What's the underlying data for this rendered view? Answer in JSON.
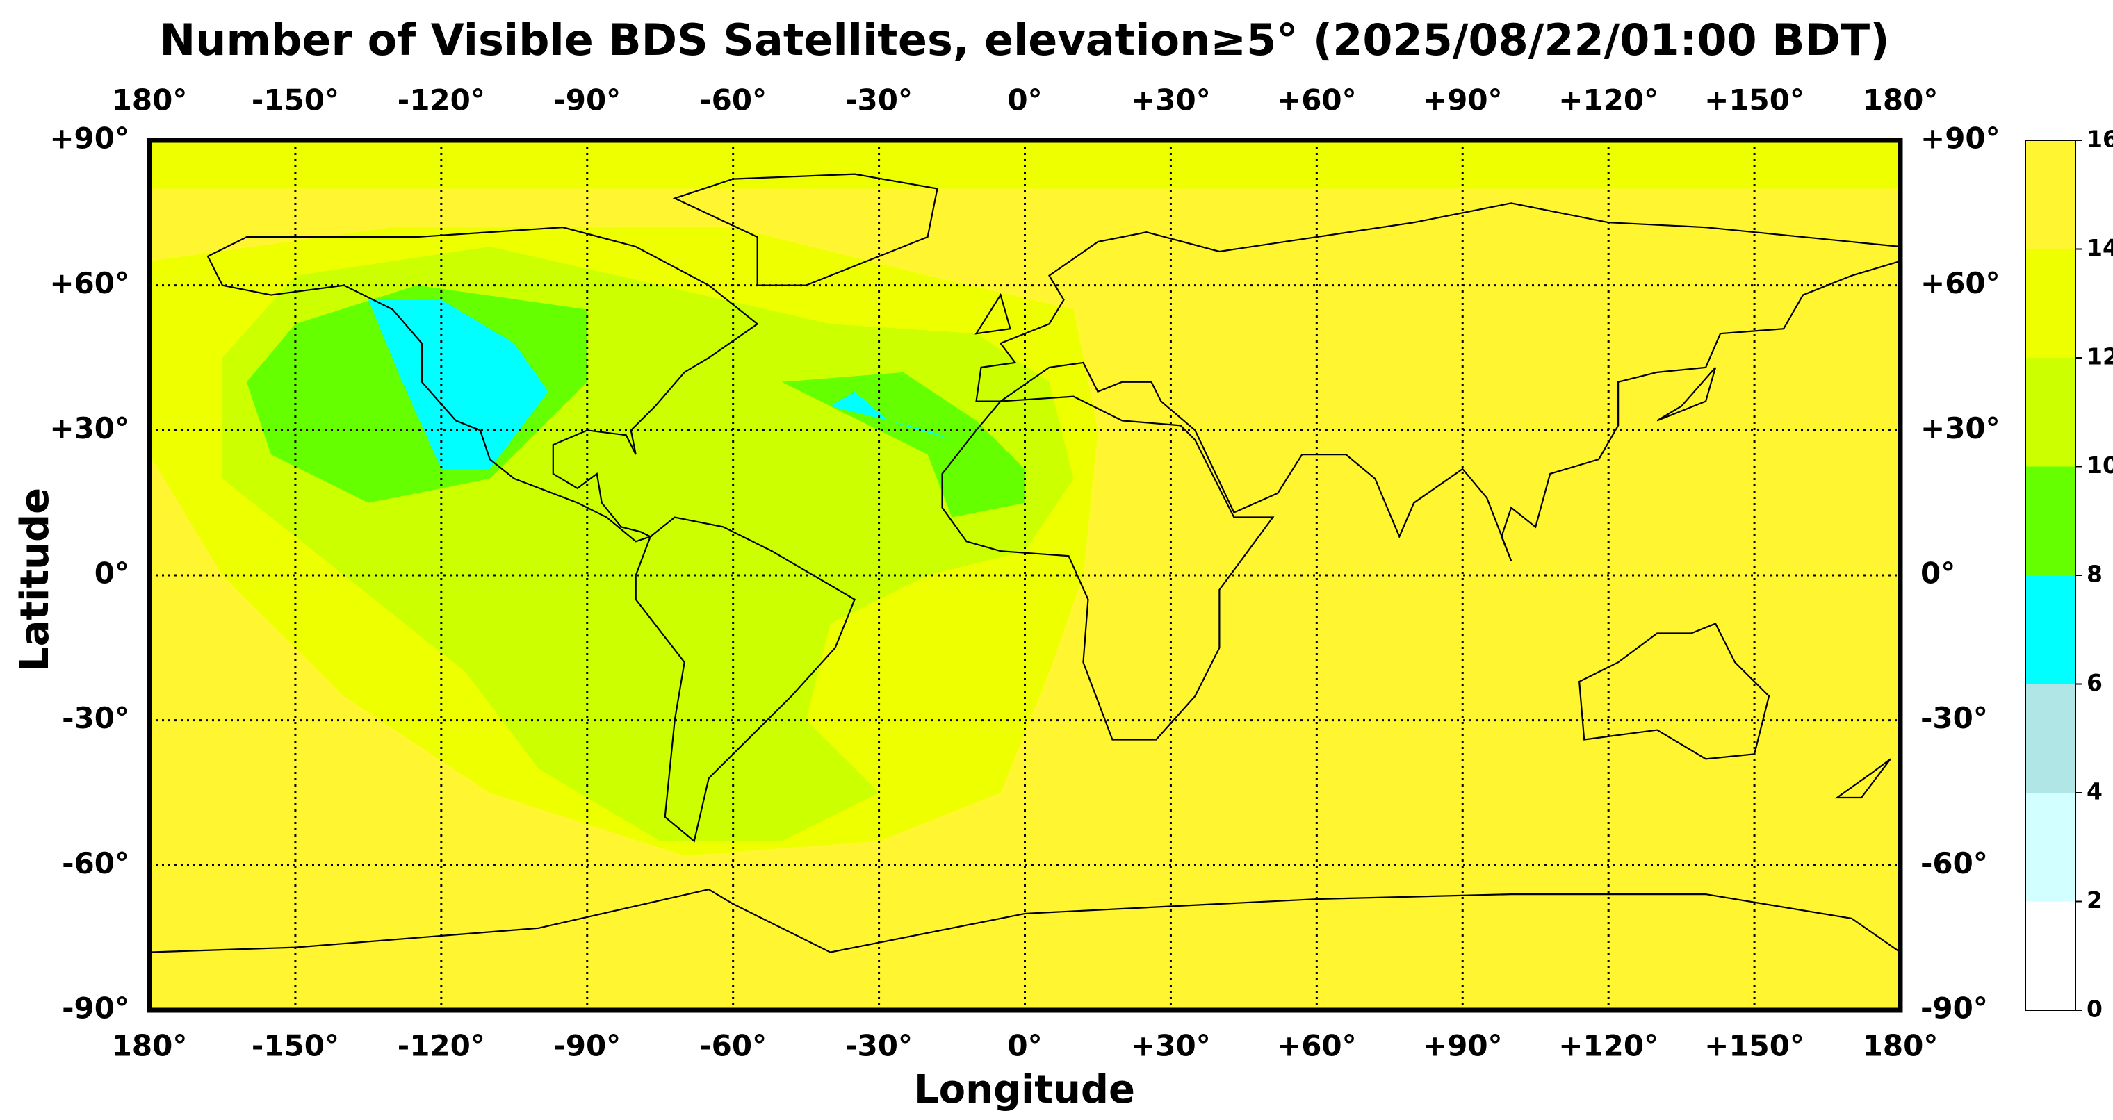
{
  "chart_data": {
    "type": "map",
    "title": "Number of Visible BDS Satellites, elevation≥5° (2025/08/22/01:00 BDT)",
    "xlabel": "Longitude",
    "ylabel": "Latitude",
    "xlim": [
      -180,
      180
    ],
    "ylim": [
      -90,
      90
    ],
    "xticks": [
      {
        "value": -180,
        "label": "180°"
      },
      {
        "value": -150,
        "label": "-150°"
      },
      {
        "value": -120,
        "label": "-120°"
      },
      {
        "value": -90,
        "label": "-90°"
      },
      {
        "value": -60,
        "label": "-60°"
      },
      {
        "value": -30,
        "label": "-30°"
      },
      {
        "value": 0,
        "label": "0°"
      },
      {
        "value": 30,
        "label": "+30°"
      },
      {
        "value": 60,
        "label": "+60°"
      },
      {
        "value": 90,
        "label": "+90°"
      },
      {
        "value": 120,
        "label": "+120°"
      },
      {
        "value": 150,
        "label": "+150°"
      },
      {
        "value": 180,
        "label": "180°"
      }
    ],
    "yticks": [
      {
        "value": -90,
        "label": "-90°"
      },
      {
        "value": -60,
        "label": "-60°"
      },
      {
        "value": -30,
        "label": "-30°"
      },
      {
        "value": 0,
        "label": "0°"
      },
      {
        "value": 30,
        "label": "+30°"
      },
      {
        "value": 60,
        "label": "+60°"
      },
      {
        "value": 90,
        "label": "+90°"
      }
    ],
    "grid": true,
    "colorbar": {
      "lim": [
        0,
        16
      ],
      "ticks": [
        0,
        2,
        4,
        6,
        8,
        10,
        12,
        14,
        16
      ],
      "colors": [
        "#ffffff",
        "#d2ffff",
        "#b0e6e6",
        "#00ffff",
        "#66ff00",
        "#ccff00",
        "#eeff00",
        "#fff530"
      ]
    },
    "regions": [
      {
        "value": 15,
        "outline": [
          [
            -180,
            90
          ],
          [
            180,
            90
          ],
          [
            180,
            -90
          ],
          [
            -180,
            -90
          ]
        ]
      },
      {
        "value": 13,
        "outline": [
          [
            -180,
            90
          ],
          [
            180,
            90
          ],
          [
            180,
            80
          ],
          [
            -180,
            80
          ]
        ]
      },
      {
        "value": 13,
        "outline": [
          [
            -180,
            65
          ],
          [
            -130,
            72
          ],
          [
            -60,
            72
          ],
          [
            -20,
            62
          ],
          [
            10,
            55
          ],
          [
            15,
            30
          ],
          [
            12,
            0
          ],
          [
            5,
            -20
          ],
          [
            -5,
            -45
          ],
          [
            -30,
            -55
          ],
          [
            -70,
            -58
          ],
          [
            -110,
            -45
          ],
          [
            -140,
            -25
          ],
          [
            -165,
            0
          ],
          [
            -180,
            25
          ]
        ]
      },
      {
        "value": 11,
        "outline": [
          [
            -150,
            62
          ],
          [
            -110,
            68
          ],
          [
            -75,
            60
          ],
          [
            -40,
            52
          ],
          [
            -10,
            50
          ],
          [
            5,
            40
          ],
          [
            10,
            20
          ],
          [
            0,
            5
          ],
          [
            -20,
            0
          ],
          [
            -40,
            -10
          ],
          [
            -45,
            -30
          ],
          [
            -30,
            -45
          ],
          [
            -50,
            -55
          ],
          [
            -75,
            -55
          ],
          [
            -100,
            -40
          ],
          [
            -115,
            -20
          ],
          [
            -140,
            0
          ],
          [
            -165,
            20
          ],
          [
            -165,
            45
          ]
        ]
      },
      {
        "value": 9,
        "outline": [
          [
            -150,
            52
          ],
          [
            -125,
            60
          ],
          [
            -90,
            55
          ],
          [
            -90,
            40
          ],
          [
            -110,
            20
          ],
          [
            -135,
            15
          ],
          [
            -155,
            25
          ],
          [
            -160,
            40
          ]
        ]
      },
      {
        "value": 9,
        "outline": [
          [
            -50,
            40
          ],
          [
            -25,
            42
          ],
          [
            -10,
            32
          ],
          [
            0,
            22
          ],
          [
            0,
            15
          ],
          [
            -15,
            12
          ],
          [
            -20,
            25
          ],
          [
            -40,
            35
          ]
        ]
      },
      {
        "value": 7,
        "outline": [
          [
            -135,
            57
          ],
          [
            -120,
            57
          ],
          [
            -105,
            48
          ],
          [
            -98,
            38
          ],
          [
            -110,
            22
          ],
          [
            -120,
            22
          ],
          [
            -128,
            40
          ]
        ]
      },
      {
        "value": 7,
        "outline": [
          [
            -40,
            35
          ],
          [
            -35,
            38
          ],
          [
            -28,
            32
          ],
          [
            -15,
            28
          ],
          [
            -20,
            30
          ]
        ]
      }
    ]
  }
}
